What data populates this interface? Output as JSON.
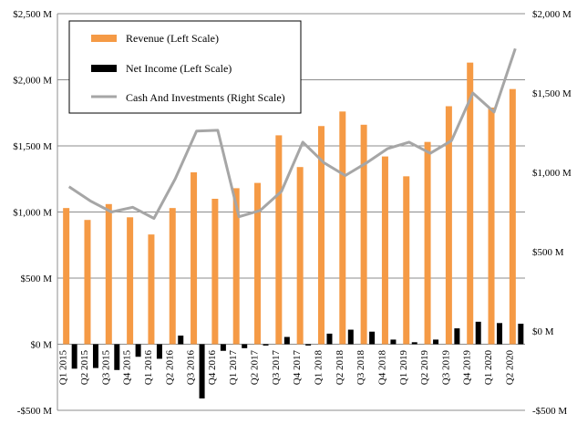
{
  "chart_data": {
    "type": "bar",
    "categories": [
      "Q1 2015",
      "Q2 2015",
      "Q3 2015",
      "Q4 2015",
      "Q1 2016",
      "Q2 2016",
      "Q3 2016",
      "Q4 2016",
      "Q1 2017",
      "Q2 2017",
      "Q3 2017",
      "Q4 2017",
      "Q1 2018",
      "Q2 2018",
      "Q3 2018",
      "Q4 2018",
      "Q1 2019",
      "Q2 2019",
      "Q3 2019",
      "Q4 2019",
      "Q1 2020",
      "Q2 2020"
    ],
    "series": [
      {
        "name": "Revenue (Left Scale)",
        "type": "bar",
        "axis": "left",
        "color": "#F59A45",
        "values": [
          1030,
          940,
          1060,
          960,
          830,
          1030,
          1300,
          1100,
          1180,
          1220,
          1580,
          1340,
          1650,
          1760,
          1660,
          1420,
          1270,
          1530,
          1800,
          2130,
          1790,
          1930
        ]
      },
      {
        "name": "Net Income (Left Scale)",
        "type": "bar",
        "axis": "left",
        "color": "#000000",
        "values": [
          -185,
          -180,
          -195,
          -95,
          -110,
          65,
          -410,
          -50,
          -30,
          -10,
          55,
          -10,
          80,
          110,
          95,
          35,
          15,
          35,
          120,
          170,
          160,
          155
        ]
      },
      {
        "name": "Cash And Investments (Right Scale)",
        "type": "line",
        "axis": "right",
        "color": "#A6A6A6",
        "values": [
          910,
          820,
          750,
          780,
          710,
          960,
          1260,
          1265,
          720,
          760,
          880,
          1190,
          1060,
          980,
          1060,
          1150,
          1190,
          1120,
          1200,
          1500,
          1380,
          1780
        ]
      }
    ],
    "yaxis_left": {
      "ylim": [
        -500,
        2500
      ],
      "ticks": [
        -500,
        0,
        500,
        1000,
        1500,
        2000,
        2500
      ],
      "tick_labels": [
        "-$500 M",
        "$0 M",
        "$500 M",
        "$1,000 M",
        "$1,500 M",
        "$2,000 M",
        "$2,500 M"
      ]
    },
    "yaxis_right": {
      "ylim": [
        -500,
        2000
      ],
      "ticks": [
        -500,
        0,
        500,
        1000,
        1500,
        2000
      ],
      "tick_labels": [
        "-$500 M",
        "$0 M",
        "$500 M",
        "$1,000 M",
        "$1,500 M",
        "$2,000 M"
      ]
    },
    "grid": true,
    "legend_position": "top-left",
    "title": "",
    "xlabel": "",
    "ylabel": ""
  }
}
